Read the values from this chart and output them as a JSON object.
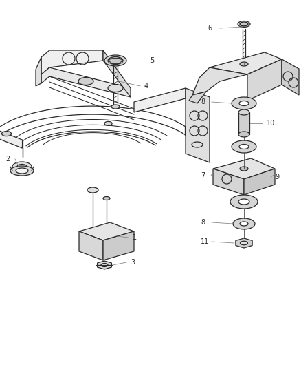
{
  "bg_color": "#ffffff",
  "line_color": "#2a2a2a",
  "label_color": "#2a2a2a",
  "leader_color": "#888888",
  "figsize": [
    4.38,
    5.33
  ],
  "dpi": 100,
  "lw": 0.9,
  "fs": 7.0
}
